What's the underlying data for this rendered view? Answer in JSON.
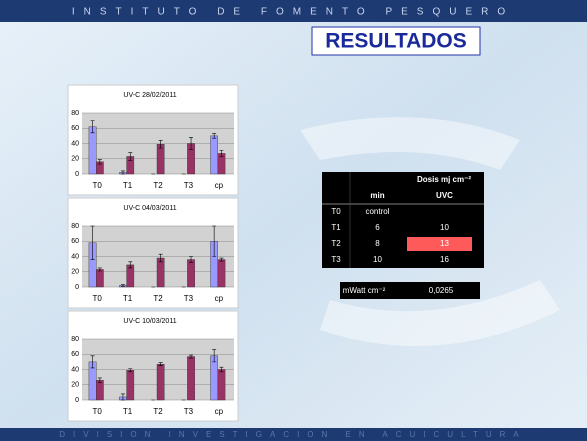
{
  "header": "INSTITUTO DE FOMENTO PESQUERO",
  "title": "RESULTADOS",
  "footer": "DIVISION INVESTIGACION EN ACUICULTURA",
  "table": {
    "dose_header": "Dosis mj cm⁻²",
    "columns": [
      "min",
      "UVC"
    ],
    "rows": [
      [
        "T0",
        "control"
      ],
      [
        "T1",
        "6",
        "10"
      ],
      [
        "T2",
        "8",
        "13"
      ],
      [
        "T3",
        "10",
        "16"
      ]
    ],
    "highlight_color": "#ff5a5a",
    "power_label": "mWatt cm⁻²",
    "power_value": "0,0265"
  },
  "chart_data": [
    {
      "type": "bar",
      "title": "UV-C 28/02/2011",
      "categories": [
        "T0",
        "T1",
        "T2",
        "T3",
        "cp"
      ],
      "ylim": [
        0,
        80
      ],
      "yticks": [
        0,
        20,
        40,
        60,
        80
      ],
      "grid": true,
      "series": [
        {
          "color": "#9999ff",
          "values": [
            62,
            2,
            0,
            0,
            50
          ],
          "errors": [
            8,
            2,
            0,
            0,
            3
          ]
        },
        {
          "color": "#993366",
          "values": [
            16,
            23,
            39,
            40,
            27
          ],
          "errors": [
            3,
            5,
            5,
            8,
            4
          ]
        }
      ]
    },
    {
      "type": "bar",
      "title": "UV-C 04/03/2011",
      "categories": [
        "T0",
        "T1",
        "T2",
        "T3",
        "cp"
      ],
      "ylim": [
        0,
        80
      ],
      "yticks": [
        0,
        20,
        40,
        60,
        80
      ],
      "grid": true,
      "series": [
        {
          "color": "#9999ff",
          "values": [
            58,
            2,
            0,
            0,
            60
          ],
          "errors": [
            22,
            1,
            0,
            0,
            20
          ]
        },
        {
          "color": "#993366",
          "values": [
            23,
            29,
            38,
            36,
            36
          ],
          "errors": [
            2,
            4,
            5,
            4,
            2
          ]
        }
      ]
    },
    {
      "type": "bar",
      "title": "UV-C 10/03/2011",
      "categories": [
        "T0",
        "T1",
        "T2",
        "T3",
        "cp"
      ],
      "ylim": [
        0,
        80
      ],
      "yticks": [
        0,
        20,
        40,
        60,
        80
      ],
      "grid": true,
      "series": [
        {
          "color": "#9999ff",
          "values": [
            50,
            4,
            0,
            0,
            58
          ],
          "errors": [
            8,
            4,
            0,
            0,
            8
          ]
        },
        {
          "color": "#993366",
          "values": [
            26,
            39,
            47,
            57,
            40
          ],
          "errors": [
            3,
            2,
            2,
            2,
            3
          ]
        }
      ]
    }
  ]
}
